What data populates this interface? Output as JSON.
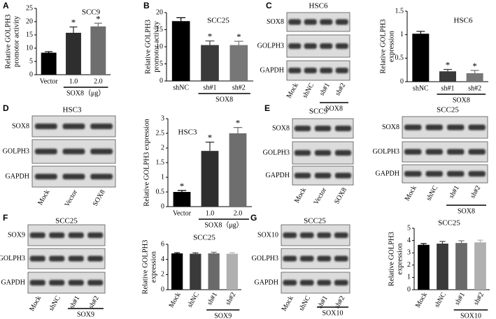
{
  "panel_letters": [
    "A",
    "B",
    "C",
    "D",
    "E",
    "F",
    "G"
  ],
  "chart_data": [
    {
      "type": "bar",
      "title": "SCC9",
      "y_label": [
        "Relative GOLPH3",
        "promotor activity"
      ],
      "categories": [
        "Vector",
        "1.0",
        "2.0"
      ],
      "group_label": "SOX8（μg）",
      "values": [
        8.3,
        15.8,
        18.2
      ],
      "errors": [
        0.4,
        2.2,
        1.2
      ],
      "significance": [
        null,
        "*",
        "*"
      ],
      "colors": [
        "#000000",
        "#2e2e2e",
        "#6e6e6e"
      ],
      "ylim": [
        0,
        25
      ],
      "yticks": [
        0,
        5,
        10,
        15,
        20,
        25
      ]
    },
    {
      "type": "bar",
      "title": "SCC25",
      "y_label": [
        "Relative GOLPH3",
        "promotor activity"
      ],
      "categories": [
        "shNC",
        "sh#1",
        "sh#2"
      ],
      "group_label": "SOX8",
      "values": [
        17.5,
        10.5,
        10.5
      ],
      "errors": [
        1.0,
        1.2,
        1.1
      ],
      "significance": [
        null,
        "*",
        "*"
      ],
      "colors": [
        "#000000",
        "#3a3a3a",
        "#777777"
      ],
      "ylim": [
        0,
        20
      ],
      "yticks": [
        0,
        5,
        10,
        15,
        20
      ]
    },
    {
      "type": "bar",
      "title": "HSC6",
      "y_label": [
        "Relative GOLPH3",
        "expression"
      ],
      "categories": [
        "shNC",
        "sh#1",
        "sh#2"
      ],
      "group_label": "SOX8",
      "values": [
        1.02,
        0.22,
        0.18
      ],
      "errors": [
        0.05,
        0.04,
        0.06
      ],
      "significance": [
        null,
        "*",
        "*"
      ],
      "colors": [
        "#000000",
        "#3a3a3a",
        "#777777"
      ],
      "ylim": [
        0,
        1.5
      ],
      "yticks": [
        0,
        0.5,
        1,
        1.5
      ]
    },
    {
      "type": "bar",
      "title": "HSC3",
      "y_label": [
        "Relative GOLPH3 expression"
      ],
      "categories": [
        "Vector",
        "1.0",
        "2.0"
      ],
      "group_label": "SOX8（μg）",
      "values": [
        0.5,
        1.9,
        2.5
      ],
      "errors": [
        0.05,
        0.3,
        0.2
      ],
      "significance": [
        "*",
        "*",
        "*"
      ],
      "colors": [
        "#000000",
        "#2e2e2e",
        "#6e6e6e"
      ],
      "ylim": [
        0,
        3
      ],
      "yticks": [
        0,
        0.5,
        1,
        1.5,
        2,
        2.5,
        3
      ]
    },
    {
      "type": "bar",
      "title": "SCC25",
      "y_label": [
        "Relative GOLPH3",
        "expression"
      ],
      "categories": [
        "Mock",
        "shNC",
        "sh#1",
        "sh#2"
      ],
      "group_label": "SOX9",
      "values": [
        4.8,
        4.75,
        4.8,
        4.75
      ],
      "errors": [
        0.1,
        0.12,
        0.15,
        0.15
      ],
      "significance": [
        null,
        null,
        null,
        null
      ],
      "colors": [
        "#000000",
        "#3a3a3a",
        "#6a6a6a",
        "#b0b0b0"
      ],
      "ylim": [
        0,
        6
      ],
      "yticks": [
        0,
        2,
        4,
        6
      ]
    },
    {
      "type": "bar",
      "title": "SCC25",
      "y_label": [
        "Relative GOLPH3",
        "expression"
      ],
      "categories": [
        "Mock",
        "shNC",
        "sh#1",
        "sh#2"
      ],
      "group_label": "SOX10",
      "values": [
        3.65,
        3.75,
        3.8,
        3.85
      ],
      "errors": [
        0.1,
        0.18,
        0.18,
        0.18
      ],
      "significance": [
        null,
        null,
        null,
        null
      ],
      "colors": [
        "#000000",
        "#3a3a3a",
        "#6a6a6a",
        "#b0b0b0"
      ],
      "ylim": [
        0,
        5
      ],
      "yticks": [
        0,
        1,
        2,
        3,
        4,
        5
      ]
    }
  ],
  "blots": [
    {
      "title": "HSC6",
      "rows": [
        "SOX8",
        "GOLPH3",
        "GAPDH"
      ],
      "lanes": [
        "Mock",
        "shNC",
        "sh#1",
        "sh#2"
      ],
      "group_label": "SOX8"
    },
    {
      "title": "HSC3",
      "rows": [
        "SOX8",
        "GOLPH3",
        "GAPDH"
      ],
      "lanes": [
        "Mock",
        "Vector",
        "SOX8"
      ]
    },
    {
      "title": "SCC9",
      "rows": [
        "SOX8",
        "GOLPH3",
        "GAPDH"
      ],
      "lanes": [
        "Mock",
        "Vector",
        "SOX8"
      ]
    },
    {
      "title": "SCC25",
      "rows": [
        "SOX8",
        "GOLPH3",
        "GAPDH"
      ],
      "lanes": [
        "Mock",
        "shNC",
        "sh#1",
        "sh#2"
      ],
      "group_label": "SOX8"
    },
    {
      "title": "SCC25",
      "rows": [
        "SOX9",
        "GOLPH3",
        "GAPDH"
      ],
      "lanes": [
        "Mock",
        "shNC",
        "sh#1",
        "sh#2"
      ],
      "group_label": "SOX9"
    },
    {
      "title": "SCC25",
      "rows": [
        "SOX10",
        "GOLPH3",
        "GAPDH"
      ],
      "lanes": [
        "Mock",
        "shNC",
        "sh#1",
        "sh#2"
      ],
      "group_label": "SOX10"
    }
  ]
}
